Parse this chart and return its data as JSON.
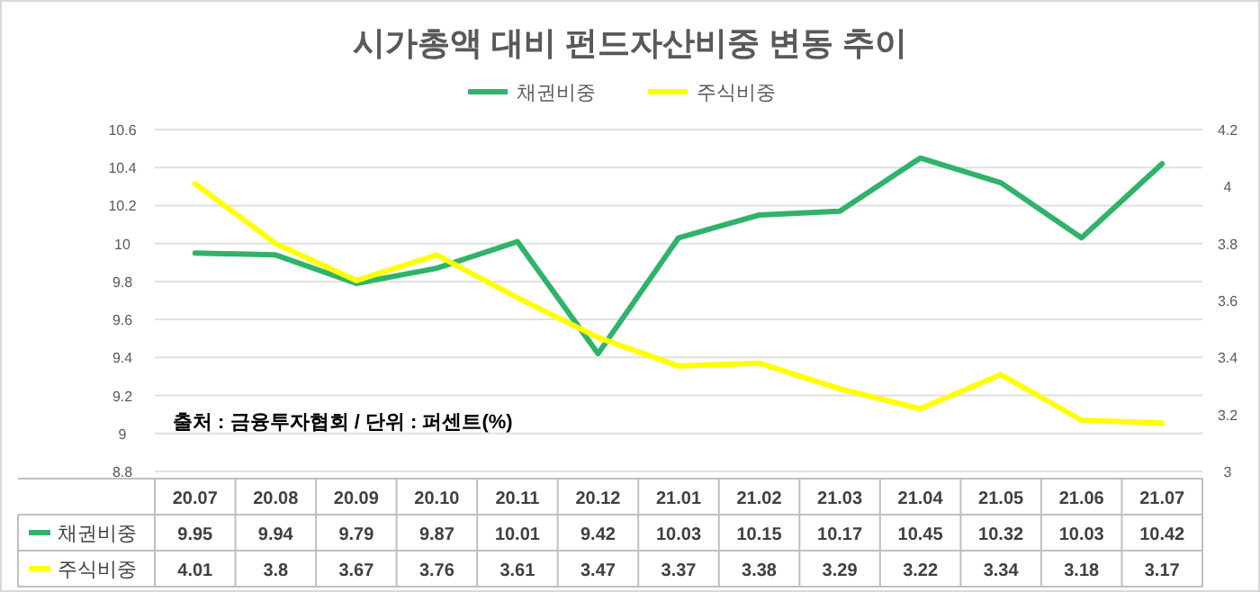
{
  "chart_data": {
    "type": "line",
    "title": "시가총액 대비 펀드자산비중 변동 추이",
    "categories": [
      "20.07",
      "20.08",
      "20.09",
      "20.10",
      "20.11",
      "20.12",
      "21.01",
      "21.02",
      "21.03",
      "21.04",
      "21.05",
      "21.06",
      "21.07"
    ],
    "series": [
      {
        "name": "채권비중",
        "color": "#2fb36b",
        "values": [
          9.95,
          9.94,
          9.79,
          9.87,
          10.01,
          9.42,
          10.03,
          10.15,
          10.17,
          10.45,
          10.32,
          10.03,
          10.42
        ]
      },
      {
        "name": "주식비중",
        "color": "#ffff00",
        "axis": "y2",
        "values": [
          4.01,
          3.8,
          3.67,
          3.76,
          3.61,
          3.47,
          3.37,
          3.38,
          3.29,
          3.22,
          3.34,
          3.18,
          3.17
        ]
      }
    ],
    "ylim": [
      8.8,
      10.6
    ],
    "yticks": [
      8.8,
      9,
      9.2,
      9.4,
      9.6,
      9.8,
      10,
      10.2,
      10.4,
      10.6
    ],
    "y2lim": [
      3,
      4.2
    ],
    "y2ticks": [
      3,
      3.2,
      3.4,
      3.6,
      3.8,
      4,
      4.2
    ],
    "grid": "y",
    "legend": "top",
    "data_labels": true,
    "annotations": [
      {
        "text": "출처 : 금융투자협회 / 단위 : 퍼센트(%)"
      }
    ]
  }
}
